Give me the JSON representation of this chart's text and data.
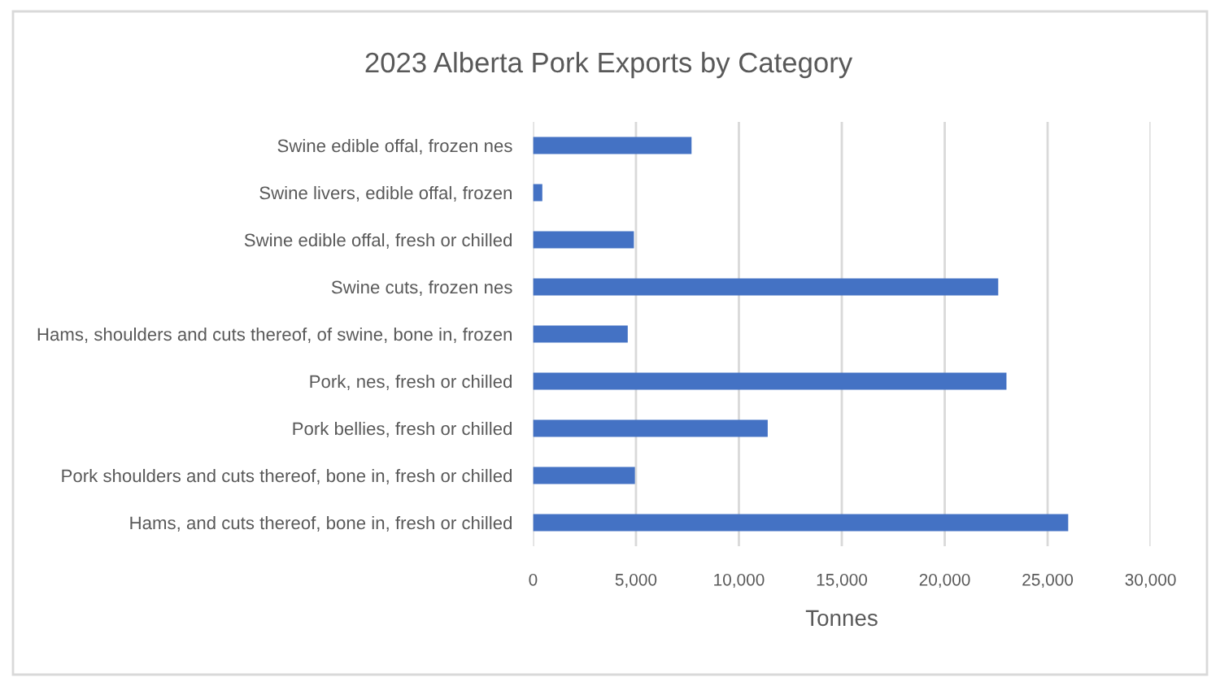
{
  "chart_data": {
    "type": "bar",
    "orientation": "horizontal",
    "title": "2023 Alberta Pork Exports by Category",
    "xlabel": "Tonnes",
    "categories": [
      "Swine edible offal, frozen nes",
      "Swine livers, edible offal, frozen",
      "Swine edible offal, fresh or chilled",
      "Swine cuts, frozen nes",
      "Hams, shoulders and cuts thereof, of swine, bone in, frozen",
      "Pork, nes, fresh or chilled",
      "Pork bellies, fresh or chilled",
      "Pork shoulders and cuts thereof, bone in, fresh or chilled",
      "Hams, and cuts thereof, bone in, fresh or chilled"
    ],
    "values": [
      7700,
      450,
      4900,
      22600,
      4600,
      23000,
      11400,
      4950,
      26000
    ],
    "color": "#4472c4",
    "xlim": [
      0,
      30000
    ],
    "xticks": [
      0,
      {
        "value": 5000,
        "label": "5,000"
      },
      {
        "value": 10000,
        "label": "10,000"
      },
      {
        "value": 15000,
        "label": "15,000"
      },
      {
        "value": 20000,
        "label": "20,000"
      },
      {
        "value": 25000,
        "label": "25,000"
      },
      {
        "value": 30000,
        "label": "30,000"
      }
    ],
    "grid": "x",
    "legend": false
  }
}
